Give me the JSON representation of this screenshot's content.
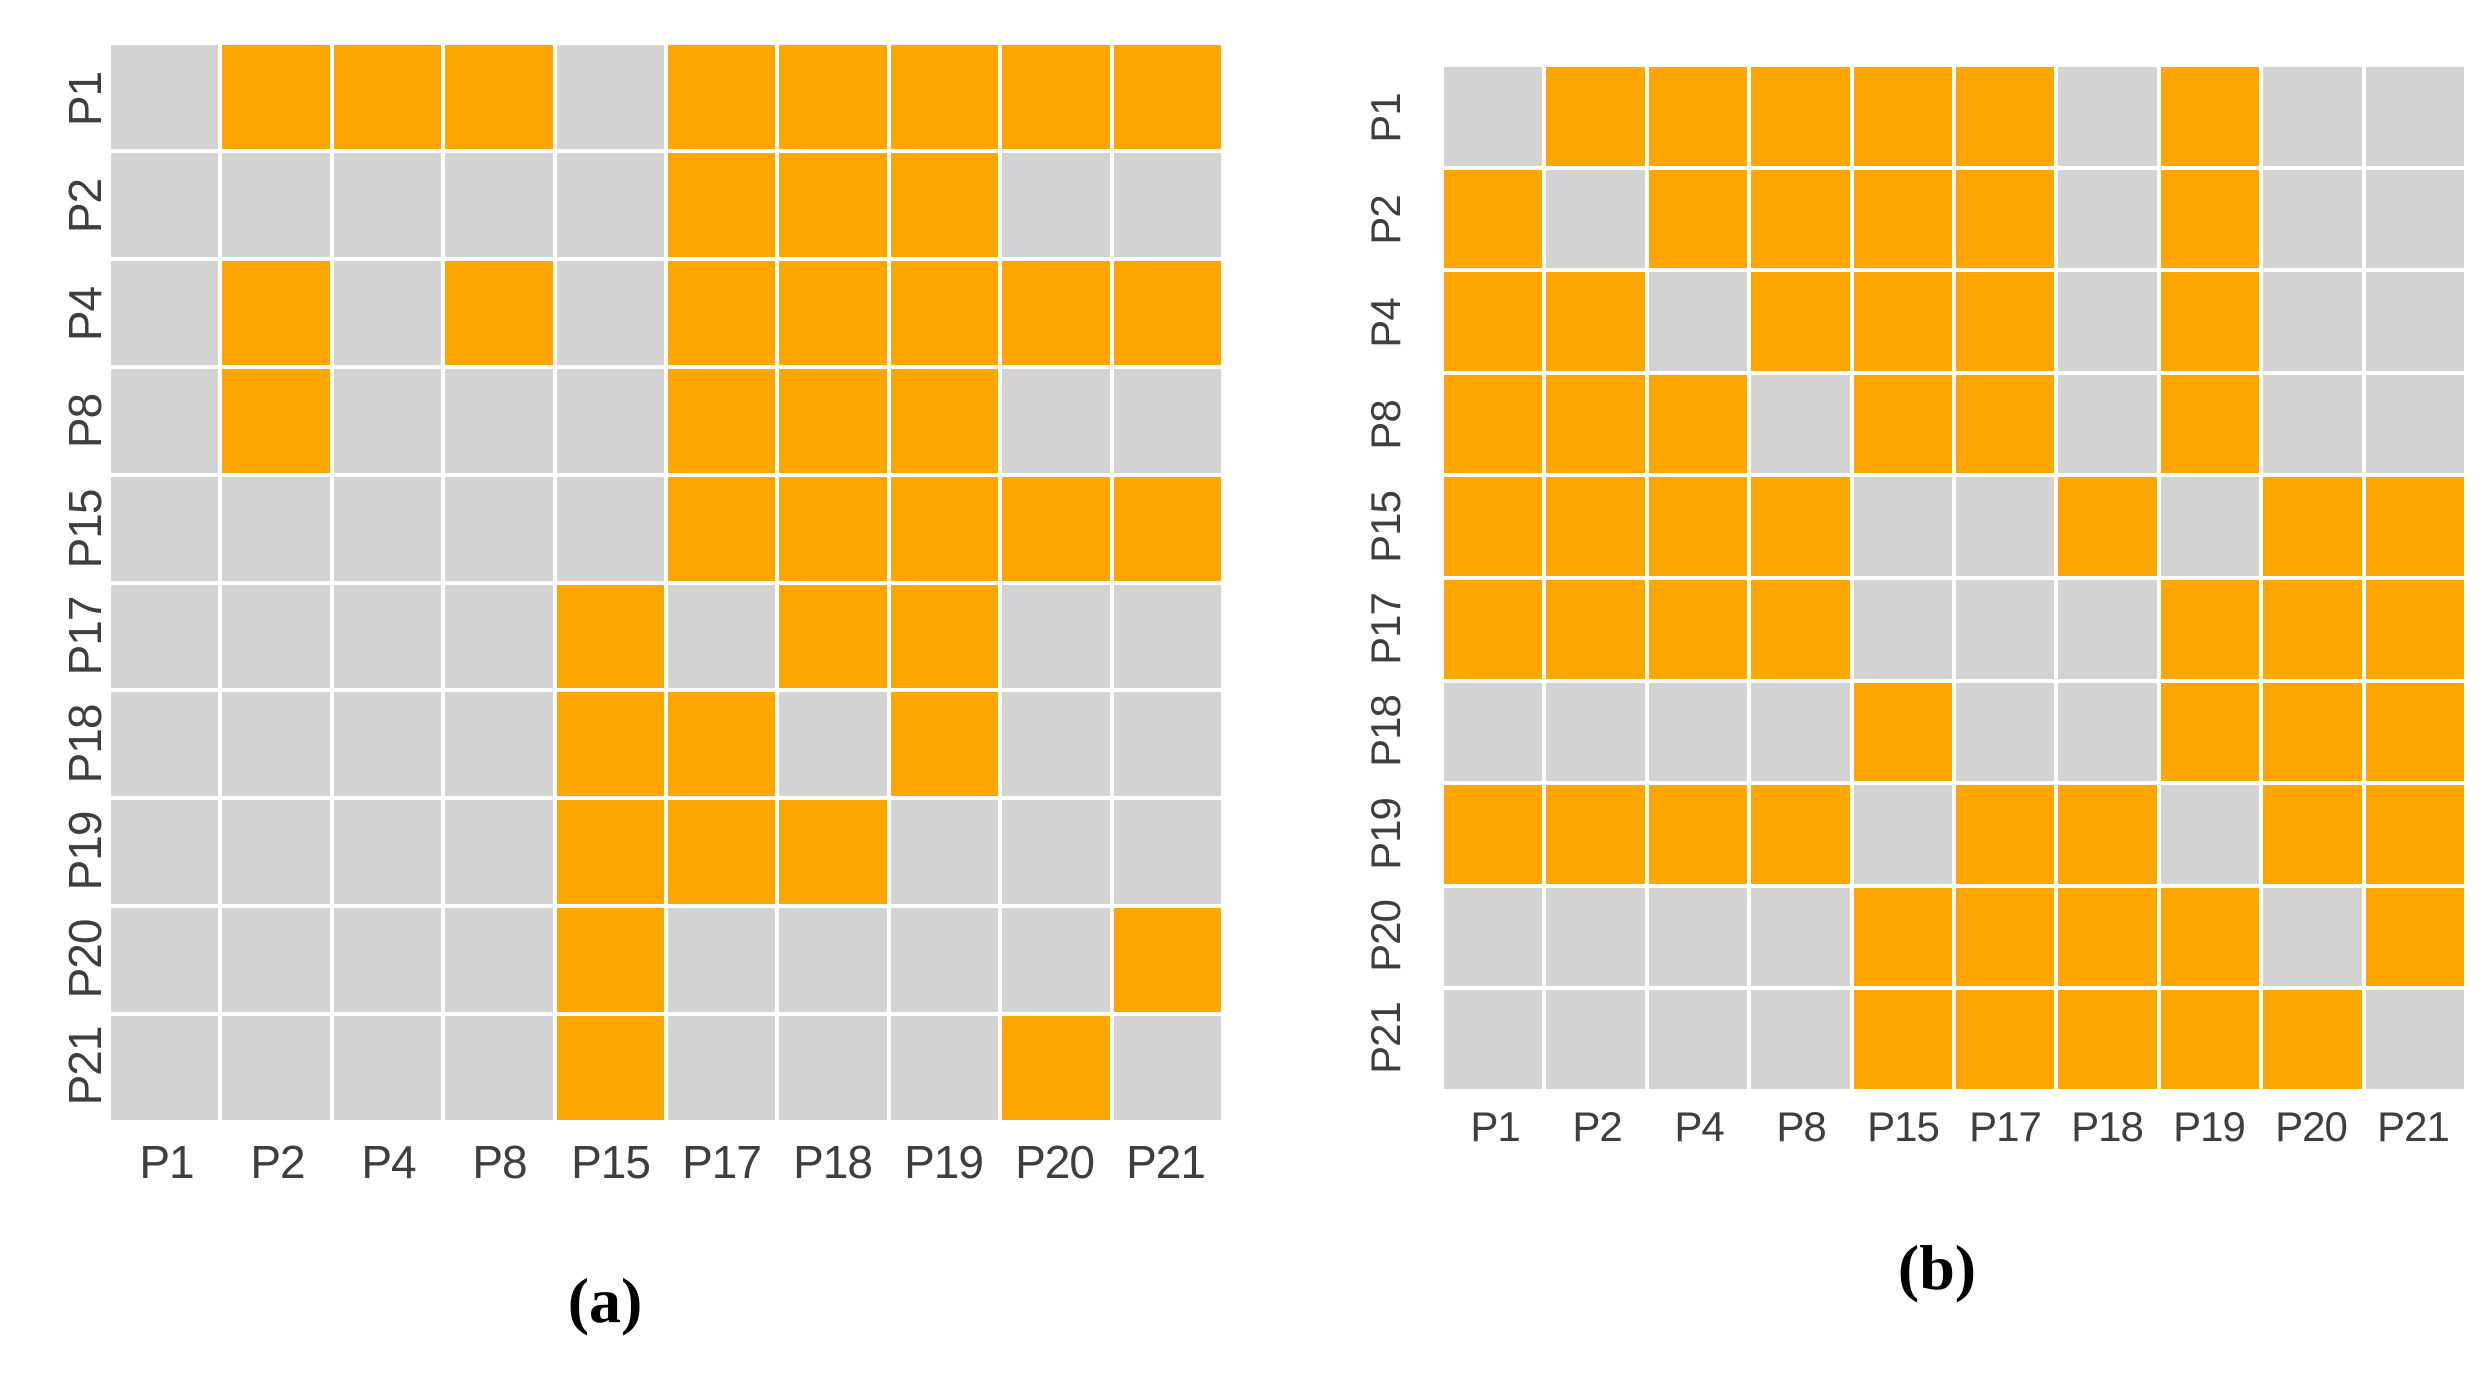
{
  "colors": {
    "filled": "#FFA500",
    "empty": "#D3D3D3",
    "gridline": "#FFFFFF",
    "axis_label_text": "#3E3E3E",
    "caption_text": "#000000"
  },
  "chart_data": [
    {
      "type": "heatmap",
      "panel": "a",
      "caption": "(a)",
      "x_categories": [
        "P1",
        "P2",
        "P4",
        "P8",
        "P15",
        "P17",
        "P18",
        "P19",
        "P20",
        "P21"
      ],
      "y_categories": [
        "P1",
        "P2",
        "P4",
        "P8",
        "P15",
        "P17",
        "P18",
        "P19",
        "P20",
        "P21"
      ],
      "legend": "none",
      "grid": "white gridlines between cells",
      "value_colors": {
        "1": "#FFA500",
        "0": "#D3D3D3"
      },
      "values": [
        [
          0,
          1,
          1,
          1,
          0,
          1,
          1,
          1,
          1,
          1
        ],
        [
          0,
          0,
          0,
          0,
          0,
          1,
          1,
          1,
          0,
          0
        ],
        [
          0,
          1,
          0,
          1,
          0,
          1,
          1,
          1,
          1,
          1
        ],
        [
          0,
          1,
          0,
          0,
          0,
          1,
          1,
          1,
          0,
          0
        ],
        [
          0,
          0,
          0,
          0,
          0,
          1,
          1,
          1,
          1,
          1
        ],
        [
          0,
          0,
          0,
          0,
          1,
          0,
          1,
          1,
          0,
          0
        ],
        [
          0,
          0,
          0,
          0,
          1,
          1,
          0,
          1,
          0,
          0
        ],
        [
          0,
          0,
          0,
          0,
          1,
          1,
          1,
          0,
          0,
          0
        ],
        [
          0,
          0,
          0,
          0,
          1,
          0,
          0,
          0,
          0,
          1
        ],
        [
          0,
          0,
          0,
          0,
          1,
          0,
          0,
          0,
          1,
          0
        ]
      ]
    },
    {
      "type": "heatmap",
      "panel": "b",
      "caption": "(b)",
      "x_categories": [
        "P1",
        "P2",
        "P4",
        "P8",
        "P15",
        "P17",
        "P18",
        "P19",
        "P20",
        "P21"
      ],
      "y_categories": [
        "P1",
        "P2",
        "P4",
        "P8",
        "P15",
        "P17",
        "P18",
        "P19",
        "P20",
        "P21"
      ],
      "legend": "none",
      "grid": "white gridlines between cells",
      "value_colors": {
        "1": "#FFA500",
        "0": "#D3D3D3"
      },
      "values": [
        [
          0,
          1,
          1,
          1,
          1,
          1,
          0,
          1,
          0,
          0
        ],
        [
          1,
          0,
          1,
          1,
          1,
          1,
          0,
          1,
          0,
          0
        ],
        [
          1,
          1,
          0,
          1,
          1,
          1,
          0,
          1,
          0,
          0
        ],
        [
          1,
          1,
          1,
          0,
          1,
          1,
          0,
          1,
          0,
          0
        ],
        [
          1,
          1,
          1,
          1,
          0,
          0,
          1,
          0,
          1,
          1
        ],
        [
          1,
          1,
          1,
          1,
          0,
          0,
          0,
          1,
          1,
          1
        ],
        [
          0,
          0,
          0,
          0,
          1,
          0,
          0,
          1,
          1,
          1
        ],
        [
          1,
          1,
          1,
          1,
          0,
          1,
          1,
          0,
          1,
          1
        ],
        [
          0,
          0,
          0,
          0,
          1,
          1,
          1,
          1,
          0,
          1
        ],
        [
          0,
          0,
          0,
          0,
          1,
          1,
          1,
          1,
          1,
          0
        ]
      ]
    }
  ]
}
